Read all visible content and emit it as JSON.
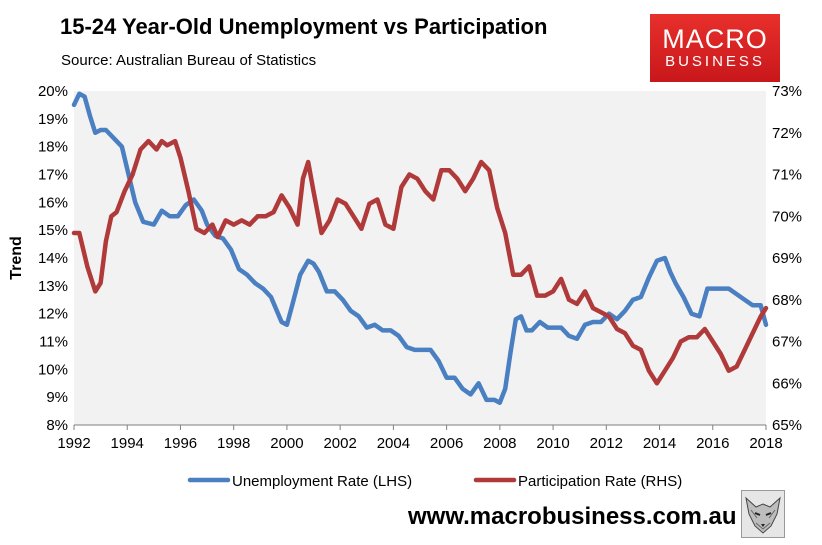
{
  "header": {
    "title": "15-24 Year-Old Unemployment vs Participation",
    "source": "Source: Australian Bureau of Statistics"
  },
  "logo": {
    "line1": "MACRO",
    "line2": "BUSINESS"
  },
  "footer": {
    "url": "www.macrobusiness.com.au"
  },
  "colors": {
    "unemployment": "#4a7fc1",
    "participation": "#b03a3a",
    "plot_bg": "#f2f2f2"
  },
  "chart_data": {
    "type": "line",
    "title": "15-24 Year-Old Unemployment vs Participation",
    "ylabel": "Trend",
    "xlim": [
      1992,
      2018
    ],
    "x_ticks": [
      1992,
      1994,
      1996,
      1998,
      2000,
      2002,
      2004,
      2006,
      2008,
      2010,
      2012,
      2014,
      2016,
      2018
    ],
    "x_tick_labels": [
      "1992",
      "1994",
      "1996",
      "1998",
      "2000",
      "2002",
      "2004",
      "2006",
      "2008",
      "2010",
      "2012",
      "2014",
      "2016",
      "2018"
    ],
    "y_left": {
      "range": [
        8,
        20
      ],
      "ticks": [
        "8%",
        "9%",
        "10%",
        "11%",
        "12%",
        "13%",
        "14%",
        "15%",
        "16%",
        "17%",
        "18%",
        "19%",
        "20%"
      ]
    },
    "y_right": {
      "range": [
        65,
        73
      ],
      "ticks": [
        "65%",
        "66%",
        "67%",
        "68%",
        "69%",
        "70%",
        "71%",
        "72%",
        "73%"
      ]
    },
    "legend": "bottom",
    "series": [
      {
        "name": "Unemployment Rate (LHS)",
        "axis": "left",
        "x": [
          1992.0,
          1992.2,
          1992.4,
          1992.6,
          1992.8,
          1993.0,
          1993.2,
          1993.5,
          1993.8,
          1994.0,
          1994.3,
          1994.6,
          1995.0,
          1995.3,
          1995.6,
          1995.9,
          1996.2,
          1996.5,
          1996.8,
          1997.0,
          1997.3,
          1997.6,
          1997.9,
          1998.2,
          1998.5,
          1998.8,
          1999.1,
          1999.4,
          1999.8,
          2000.0,
          2000.2,
          2000.5,
          2000.8,
          2001.0,
          2001.2,
          2001.5,
          2001.8,
          2002.1,
          2002.4,
          2002.7,
          2003.0,
          2003.3,
          2003.6,
          2003.9,
          2004.2,
          2004.5,
          2004.8,
          2005.1,
          2005.4,
          2005.7,
          2006.0,
          2006.3,
          2006.6,
          2006.9,
          2007.2,
          2007.5,
          2007.8,
          2008.0,
          2008.2,
          2008.4,
          2008.6,
          2008.8,
          2009.0,
          2009.2,
          2009.5,
          2009.8,
          2010.0,
          2010.3,
          2010.6,
          2010.9,
          2011.2,
          2011.5,
          2011.8,
          2012.1,
          2012.4,
          2012.7,
          2013.0,
          2013.3,
          2013.6,
          2013.9,
          2014.2,
          2014.4,
          2014.6,
          2014.9,
          2015.2,
          2015.5,
          2015.8,
          2016.0,
          2016.3,
          2016.6,
          2016.9,
          2017.2,
          2017.5,
          2017.8,
          2018.0
        ],
        "values": [
          19.5,
          19.9,
          19.8,
          19.1,
          18.5,
          18.6,
          18.6,
          18.3,
          18.0,
          17.2,
          16.0,
          15.3,
          15.2,
          15.7,
          15.5,
          15.5,
          15.9,
          16.1,
          15.7,
          15.2,
          14.8,
          14.7,
          14.3,
          13.6,
          13.4,
          13.1,
          12.9,
          12.6,
          11.7,
          11.6,
          12.3,
          13.4,
          13.9,
          13.8,
          13.5,
          12.8,
          12.8,
          12.5,
          12.1,
          11.9,
          11.5,
          11.6,
          11.4,
          11.4,
          11.2,
          10.8,
          10.7,
          10.7,
          10.7,
          10.3,
          9.7,
          9.7,
          9.3,
          9.1,
          9.5,
          8.9,
          8.9,
          8.8,
          9.3,
          10.6,
          11.8,
          11.9,
          11.4,
          11.4,
          11.7,
          11.5,
          11.5,
          11.5,
          11.2,
          11.1,
          11.6,
          11.7,
          11.7,
          12.0,
          11.8,
          12.1,
          12.5,
          12.6,
          13.3,
          13.9,
          14.0,
          13.5,
          13.1,
          12.6,
          12.0,
          11.9,
          12.9,
          12.9,
          12.9,
          12.9,
          12.7,
          12.5,
          12.3,
          12.3,
          11.6
        ]
      },
      {
        "name": "Participation Rate (RHS)",
        "axis": "right",
        "x": [
          1992.0,
          1992.2,
          1992.5,
          1992.8,
          1993.0,
          1993.2,
          1993.4,
          1993.6,
          1993.9,
          1994.2,
          1994.5,
          1994.8,
          1995.1,
          1995.3,
          1995.5,
          1995.8,
          1996.0,
          1996.3,
          1996.6,
          1996.9,
          1997.2,
          1997.4,
          1997.7,
          1998.0,
          1998.3,
          1998.6,
          1998.9,
          1999.2,
          1999.5,
          1999.8,
          2000.1,
          2000.4,
          2000.6,
          2000.8,
          2001.0,
          2001.3,
          2001.6,
          2001.9,
          2002.2,
          2002.5,
          2002.8,
          2003.1,
          2003.4,
          2003.7,
          2004.0,
          2004.3,
          2004.6,
          2004.9,
          2005.2,
          2005.5,
          2005.8,
          2006.1,
          2006.4,
          2006.7,
          2007.0,
          2007.3,
          2007.6,
          2007.9,
          2008.2,
          2008.5,
          2008.8,
          2009.1,
          2009.4,
          2009.7,
          2010.0,
          2010.3,
          2010.6,
          2010.9,
          2011.2,
          2011.5,
          2011.8,
          2012.1,
          2012.4,
          2012.7,
          2013.0,
          2013.3,
          2013.6,
          2013.9,
          2014.2,
          2014.5,
          2014.8,
          2015.1,
          2015.4,
          2015.7,
          2016.0,
          2016.3,
          2016.6,
          2016.9,
          2017.2,
          2017.5,
          2017.8,
          2018.0
        ],
        "values": [
          69.6,
          69.6,
          68.8,
          68.2,
          68.4,
          69.4,
          70.0,
          70.1,
          70.6,
          71.0,
          71.6,
          71.8,
          71.6,
          71.8,
          71.7,
          71.8,
          71.4,
          70.6,
          69.7,
          69.6,
          69.8,
          69.5,
          69.9,
          69.8,
          69.9,
          69.8,
          70.0,
          70.0,
          70.1,
          70.5,
          70.2,
          69.8,
          70.9,
          71.3,
          70.6,
          69.6,
          69.9,
          70.4,
          70.3,
          70.0,
          69.7,
          70.3,
          70.4,
          69.8,
          69.7,
          70.7,
          71.0,
          70.9,
          70.6,
          70.4,
          71.1,
          71.1,
          70.9,
          70.6,
          70.9,
          71.3,
          71.1,
          70.2,
          69.6,
          68.6,
          68.6,
          68.8,
          68.1,
          68.1,
          68.2,
          68.5,
          68.0,
          67.9,
          68.2,
          67.8,
          67.7,
          67.6,
          67.3,
          67.2,
          66.9,
          66.8,
          66.3,
          66.0,
          66.3,
          66.6,
          67.0,
          67.1,
          67.1,
          67.3,
          67.0,
          66.7,
          66.3,
          66.4,
          66.8,
          67.2,
          67.6,
          67.8
        ]
      }
    ]
  }
}
